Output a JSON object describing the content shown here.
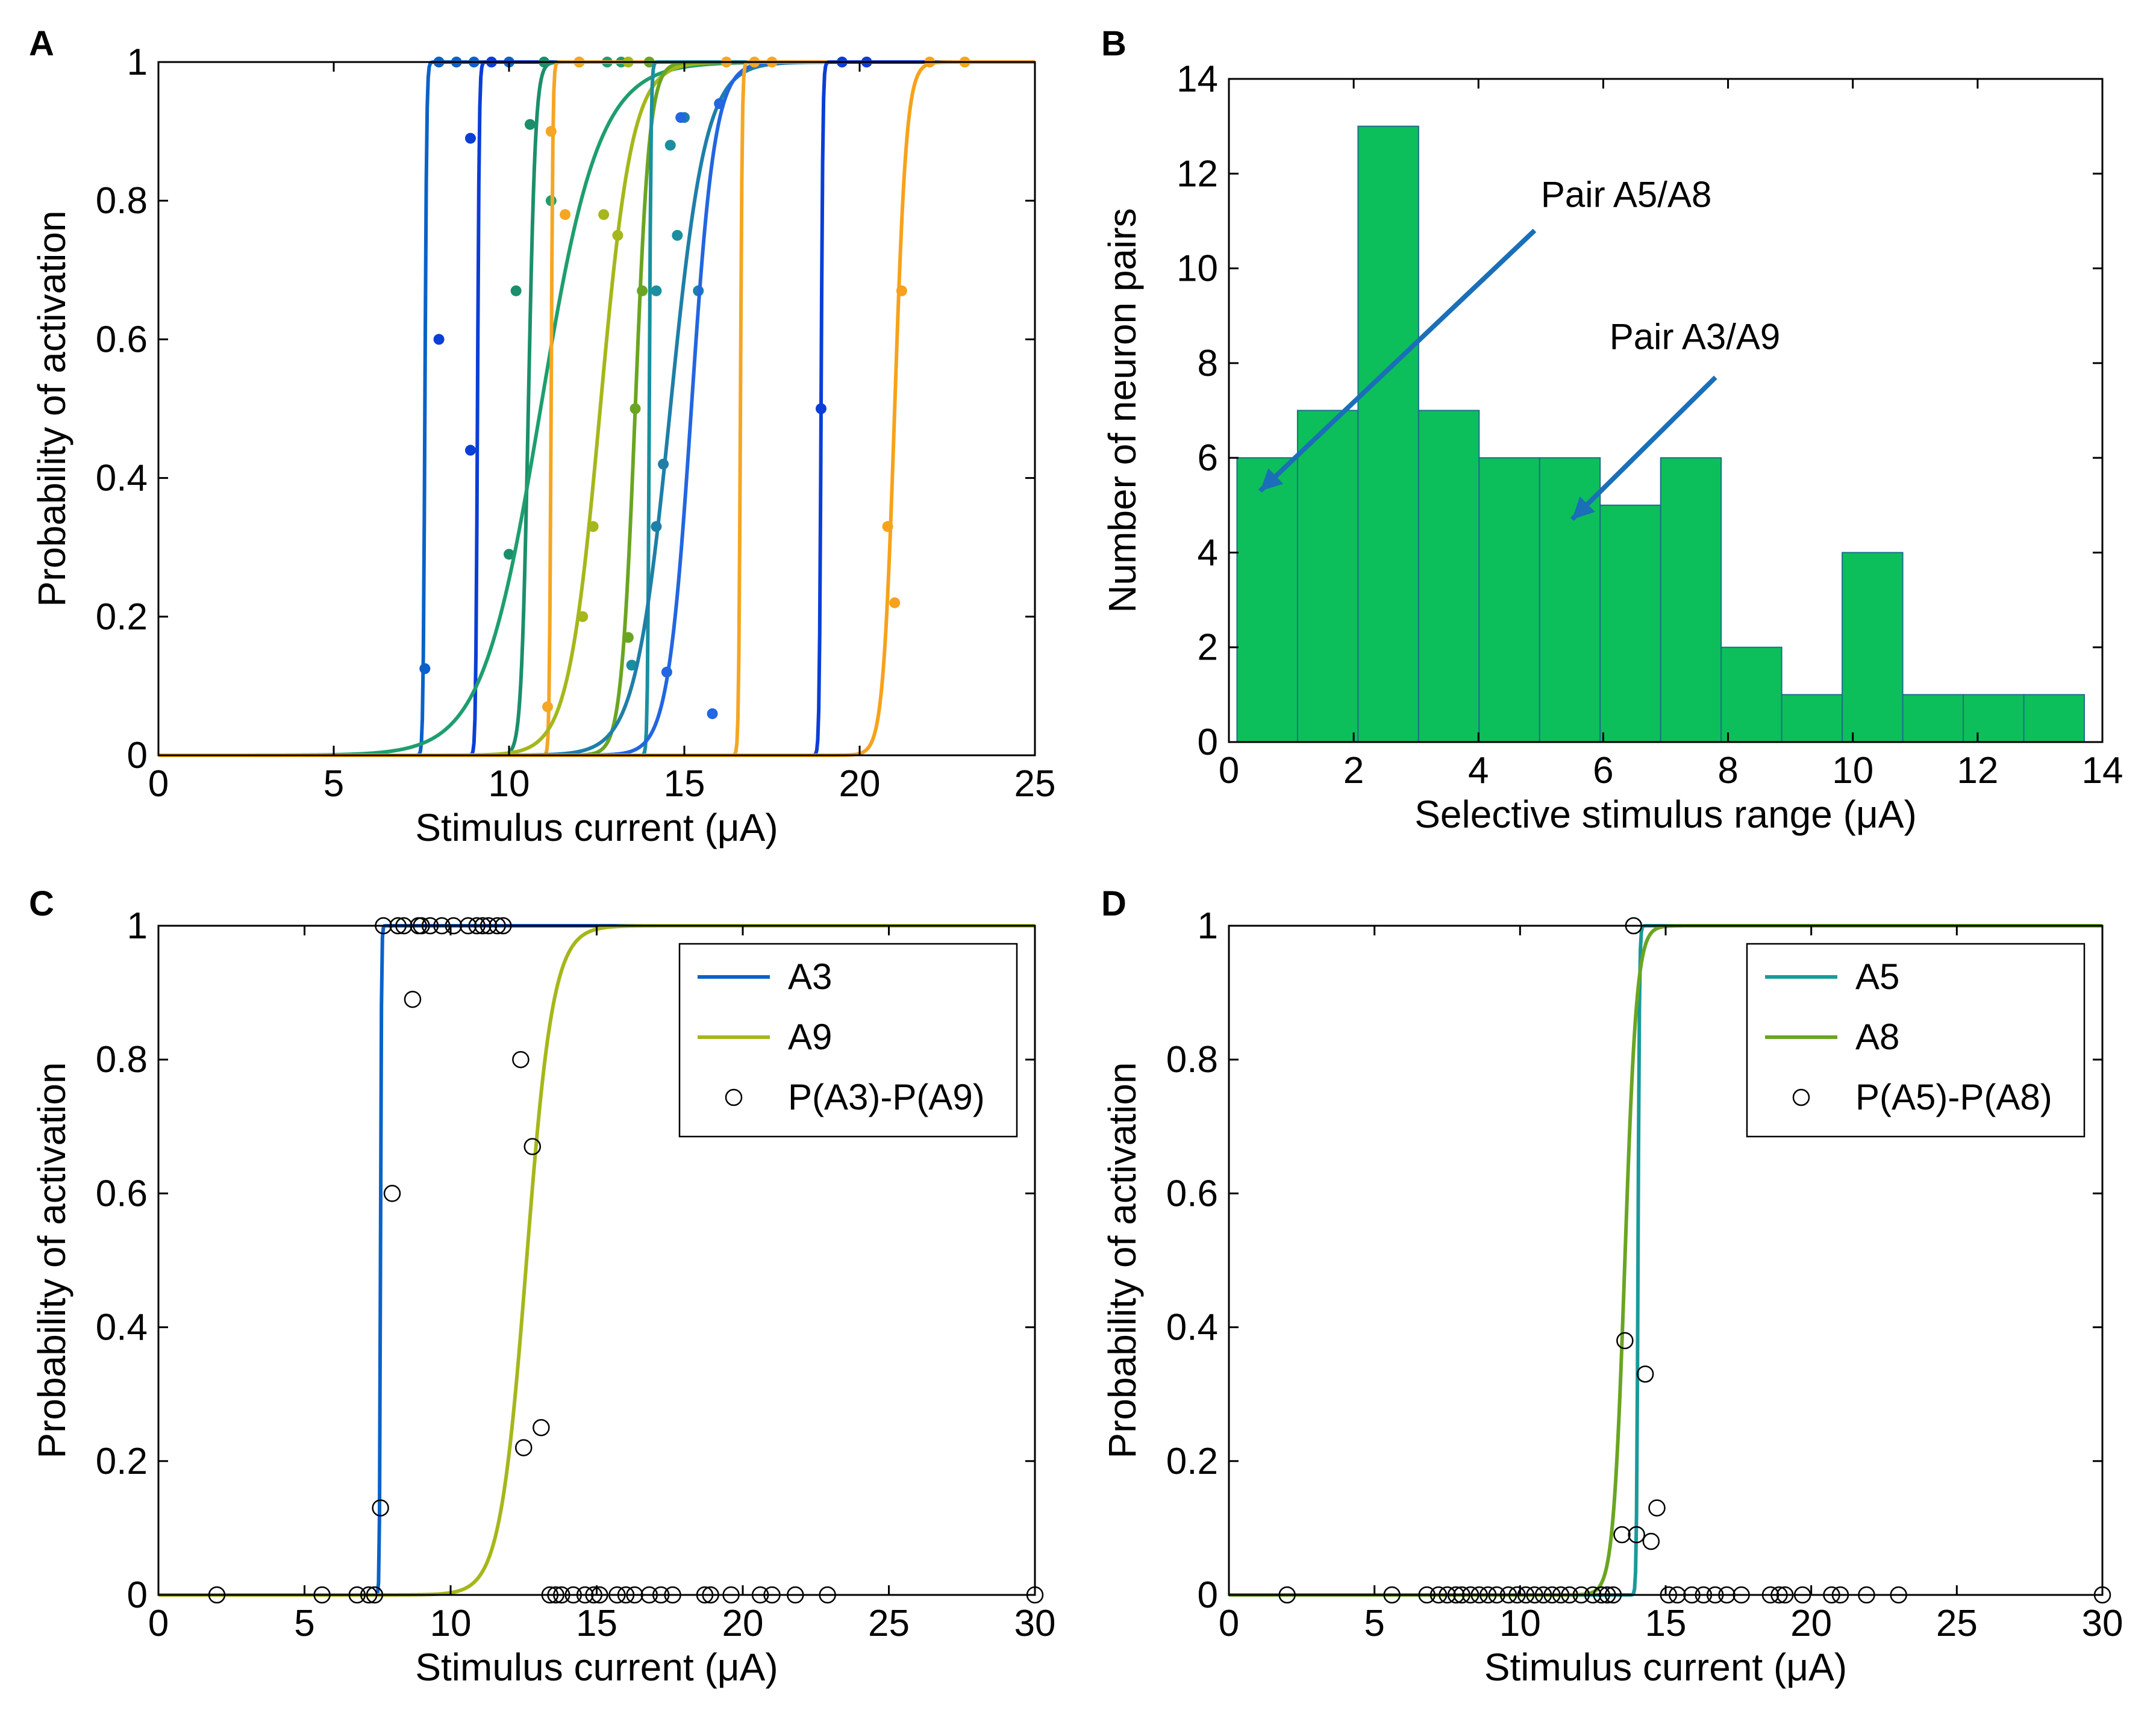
{
  "figure": {
    "panel_letters": [
      "A",
      "B",
      "C",
      "D"
    ]
  },
  "chart_data": [
    {
      "panel": "A",
      "type": "line",
      "xlabel": "Stimulus current (μA)",
      "ylabel": "Probability of activation",
      "xlim": [
        0,
        25
      ],
      "ylim": [
        0,
        1
      ],
      "xticks": [
        0,
        5,
        10,
        15,
        20,
        25
      ],
      "yticks": [
        0,
        0.2,
        0.4,
        0.6,
        0.8,
        1
      ],
      "grid": false,
      "series": [
        {
          "color": "#0a62c8",
          "threshold": 7.6,
          "slope": 40,
          "points": [
            [
              7.6,
              0.125
            ],
            [
              8.0,
              1
            ],
            [
              8.5,
              1
            ],
            [
              9.0,
              1
            ],
            [
              10.0,
              1
            ]
          ]
        },
        {
          "color": "#0a3ed6",
          "threshold": 9.1,
          "slope": 40,
          "points": [
            [
              8.0,
              0.6
            ],
            [
              8.9,
              0.89
            ],
            [
              8.9,
              0.44
            ],
            [
              9.5,
              1
            ]
          ]
        },
        {
          "color": "#1b8f6b",
          "threshold": 10.55,
          "slope": 10,
          "points": [
            [
              10.0,
              0.29
            ],
            [
              10.2,
              0.67
            ],
            [
              10.6,
              0.91
            ],
            [
              11.0,
              1
            ]
          ]
        },
        {
          "color": "#1e9e6e",
          "threshold": 10.9,
          "slope": 1.2,
          "points": [
            [
              11.2,
              0.8
            ],
            [
              12.0,
              1
            ],
            [
              12.8,
              1
            ],
            [
              13.2,
              1
            ]
          ]
        },
        {
          "color": "#f5a623",
          "threshold": 11.2,
          "slope": 40,
          "points": [
            [
              11.1,
              0.07
            ],
            [
              11.2,
              0.9
            ],
            [
              11.6,
              0.78
            ],
            [
              12.0,
              1
            ]
          ]
        },
        {
          "color": "#a5b71a",
          "threshold": 12.6,
          "slope": 2.2,
          "points": [
            [
              12.1,
              0.2
            ],
            [
              12.4,
              0.33
            ],
            [
              12.7,
              0.78
            ],
            [
              13.1,
              0.75
            ],
            [
              13.4,
              1
            ]
          ]
        },
        {
          "color": "#6aa521",
          "threshold": 13.6,
          "slope": 5,
          "points": [
            [
              13.4,
              0.17
            ],
            [
              13.6,
              0.5
            ],
            [
              13.8,
              0.67
            ],
            [
              14.0,
              1
            ]
          ]
        },
        {
          "color": "#1a8fa0",
          "threshold": 14.0,
          "slope": 40,
          "points": [
            [
              13.5,
              0.13
            ],
            [
              14.2,
              0.67
            ],
            [
              14.6,
              0.88
            ],
            [
              14.8,
              0.75
            ]
          ]
        },
        {
          "color": "#1e7fa8",
          "threshold": 14.6,
          "slope": 2,
          "points": [
            [
              14.2,
              0.33
            ],
            [
              14.4,
              0.42
            ],
            [
              15.0,
              0.92
            ],
            [
              15.4,
              0.67
            ]
          ]
        },
        {
          "color": "#2266e0",
          "threshold": 15.2,
          "slope": 3,
          "points": [
            [
              14.5,
              0.12
            ],
            [
              14.9,
              0.92
            ],
            [
              15.8,
              0.06
            ],
            [
              16.0,
              0.94
            ]
          ]
        },
        {
          "color": "#f5a623",
          "threshold": 16.6,
          "slope": 40,
          "points": [
            [
              16.2,
              1
            ],
            [
              17.0,
              1
            ],
            [
              17.5,
              1
            ]
          ]
        },
        {
          "color": "#0a3ed6",
          "threshold": 18.9,
          "slope": 40,
          "points": [
            [
              18.9,
              0.5
            ],
            [
              19.5,
              1
            ],
            [
              20.2,
              1
            ]
          ]
        },
        {
          "color": "#f7a21a",
          "threshold": 21.0,
          "slope": 6,
          "points": [
            [
              20.8,
              0.33
            ],
            [
              21.0,
              0.22
            ],
            [
              21.2,
              0.67
            ],
            [
              22.0,
              1
            ],
            [
              23.0,
              1
            ]
          ]
        }
      ]
    },
    {
      "panel": "B",
      "type": "bar",
      "xlabel": "Selective stimulus range (μA)",
      "ylabel": "Number of neuron pairs",
      "xlim": [
        0,
        14
      ],
      "ylim": [
        0,
        14
      ],
      "xticks": [
        0,
        2,
        4,
        6,
        8,
        10,
        12,
        14
      ],
      "yticks": [
        0,
        2,
        4,
        6,
        8,
        10,
        12,
        14
      ],
      "grid": false,
      "bar_color": "#0dbf5a",
      "bin_edges": [
        0.13,
        1.1,
        2.07,
        3.04,
        4.01,
        4.98,
        5.95,
        6.92,
        7.89,
        8.86,
        9.83,
        10.8,
        11.77,
        12.74,
        13.71
      ],
      "values": [
        6,
        7,
        13,
        7,
        6,
        6,
        5,
        6,
        2,
        1,
        4,
        1,
        1,
        1
      ],
      "annotations": [
        {
          "text": "Pair A5/A8",
          "text_at": [
            5.0,
            11.3
          ],
          "arrow_from": [
            4.9,
            10.8
          ],
          "arrow_to": [
            0.5,
            5.3
          ],
          "color": "#1a6fb8"
        },
        {
          "text": "Pair A3/A9",
          "text_at": [
            6.1,
            8.3
          ],
          "arrow_from": [
            7.8,
            7.7
          ],
          "arrow_to": [
            5.5,
            4.7
          ],
          "color": "#1a6fb8"
        }
      ]
    },
    {
      "panel": "C",
      "type": "line",
      "xlabel": "Stimulus current (μA)",
      "ylabel": "Probability of activation",
      "xlim": [
        0,
        30
      ],
      "ylim": [
        0,
        1
      ],
      "xticks": [
        0,
        5,
        10,
        15,
        20,
        25,
        30
      ],
      "yticks": [
        0,
        0.2,
        0.4,
        0.6,
        0.8,
        1
      ],
      "grid": false,
      "legend_position": "top-right",
      "series": [
        {
          "name": "A3",
          "color": "#0a62c8",
          "threshold": 7.6,
          "slope": 60
        },
        {
          "name": "A9",
          "color": "#a5b71a",
          "threshold": 12.6,
          "slope": 2.2
        }
      ],
      "scatter_name": "P(A3)-P(A9)",
      "scatter_x": [
        2,
        5.6,
        6.8,
        7.2,
        7.4,
        7.6,
        7.7,
        8.0,
        8.2,
        8.4,
        8.7,
        8.9,
        9.0,
        9.3,
        9.7,
        10.1,
        10.6,
        10.9,
        11.1,
        11.3,
        11.6,
        11.8,
        12.4,
        12.5,
        12.8,
        13.1,
        13.4,
        13.6,
        13.8,
        14.2,
        14.6,
        14.9,
        15.1,
        15.7,
        16.0,
        16.3,
        16.8,
        17.2,
        17.6,
        18.7,
        18.9,
        19.6,
        20.6,
        21.0,
        21.8,
        22.9,
        30
      ],
      "scatter_y": [
        0,
        0,
        0,
        0,
        0,
        0.13,
        1,
        0.6,
        1,
        1,
        0.89,
        1,
        1,
        1,
        1,
        1,
        1,
        1,
        1,
        1,
        1,
        1,
        0.8,
        0.22,
        0.67,
        0.25,
        0,
        0,
        0,
        0,
        0,
        0,
        0,
        0,
        0,
        0,
        0,
        0,
        0,
        0,
        0,
        0,
        0,
        0,
        0,
        0,
        0
      ]
    },
    {
      "panel": "D",
      "type": "line",
      "xlabel": "Stimulus current (μA)",
      "ylabel": "Probability of activation",
      "xlim": [
        0,
        30
      ],
      "ylim": [
        0,
        1
      ],
      "xticks": [
        0,
        5,
        10,
        15,
        20,
        25,
        30
      ],
      "yticks": [
        0,
        0.2,
        0.4,
        0.6,
        0.8,
        1
      ],
      "grid": false,
      "legend_position": "top-right",
      "series": [
        {
          "name": "A5",
          "color": "#1a9a9a",
          "threshold": 14.05,
          "slope": 40
        },
        {
          "name": "A8",
          "color": "#6aa521",
          "threshold": 13.6,
          "slope": 5
        }
      ],
      "scatter_name": "P(A5)-P(A8)",
      "scatter_x": [
        2,
        5.6,
        6.8,
        7.2,
        7.5,
        7.8,
        8.0,
        8.3,
        8.6,
        8.9,
        9.2,
        9.6,
        9.9,
        10.2,
        10.5,
        10.8,
        11.1,
        11.4,
        11.7,
        12.1,
        12.5,
        12.8,
        13.0,
        13.2,
        13.5,
        13.6,
        13.9,
        14.0,
        14.3,
        14.5,
        14.7,
        15.1,
        15.4,
        15.9,
        16.3,
        16.7,
        17.1,
        17.6,
        18.6,
        18.9,
        19.1,
        19.7,
        20.7,
        21.0,
        21.9,
        23.0,
        30
      ],
      "scatter_y": [
        0,
        0,
        0,
        0,
        0,
        0,
        0,
        0,
        0,
        0,
        0,
        0,
        0,
        0,
        0,
        0,
        0,
        0,
        0,
        0,
        0,
        0,
        0,
        0,
        0.09,
        0.38,
        1,
        0.09,
        0.33,
        0.08,
        0.13,
        0,
        0,
        0,
        0,
        0,
        0,
        0,
        0,
        0,
        0,
        0,
        0,
        0,
        0,
        0,
        0
      ]
    }
  ]
}
